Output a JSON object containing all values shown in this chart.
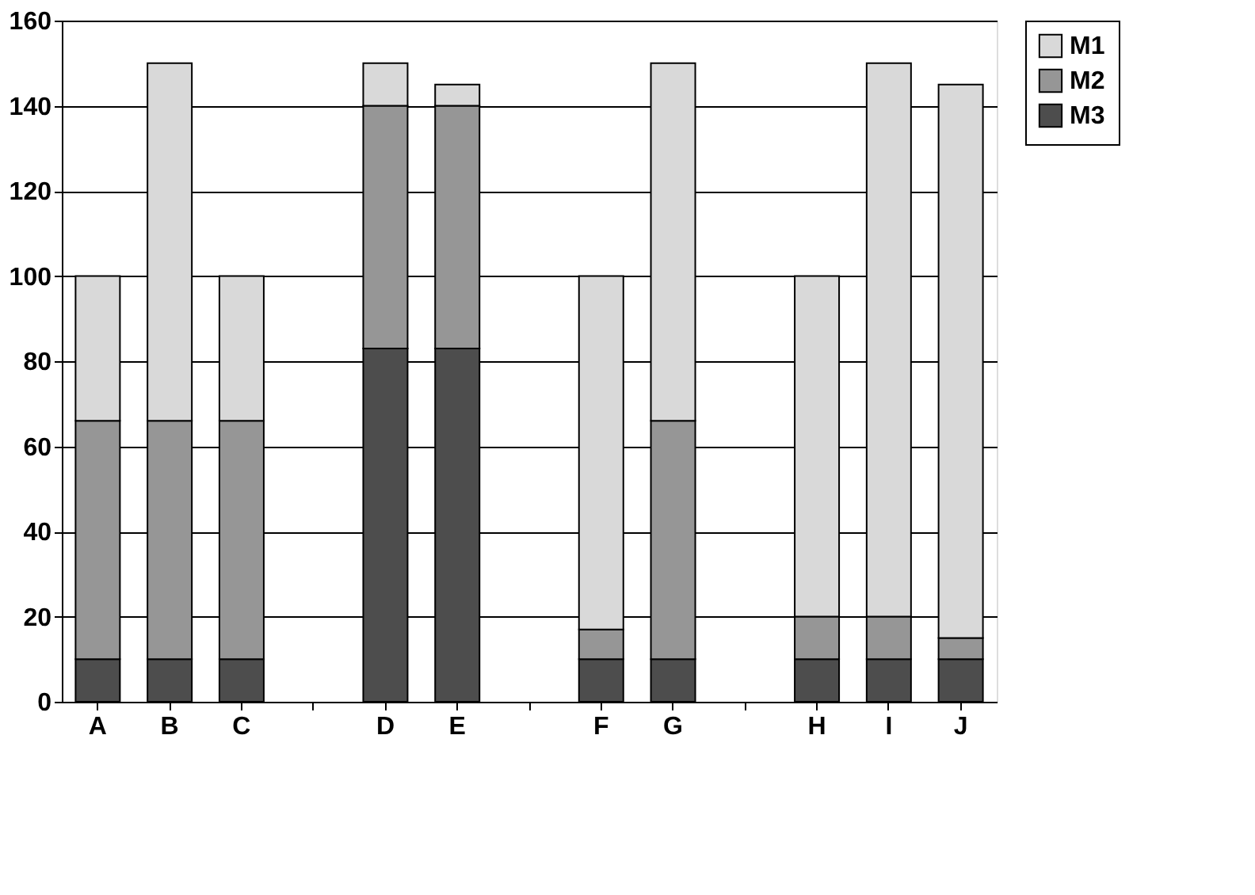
{
  "chart_data": {
    "type": "bar",
    "stacked": true,
    "categories": [
      "A",
      "B",
      "C",
      null,
      "D",
      "E",
      null,
      "F",
      "G",
      null,
      "H",
      "I",
      "J"
    ],
    "series": [
      {
        "name": "M3",
        "color": "#4d4d4d",
        "values": [
          10,
          10,
          10,
          0,
          83,
          83,
          0,
          10,
          10,
          0,
          10,
          10,
          10
        ]
      },
      {
        "name": "M2",
        "color": "#969696",
        "values": [
          56,
          56,
          56,
          0,
          57,
          57,
          0,
          7,
          56,
          0,
          10,
          10,
          5
        ]
      },
      {
        "name": "M1",
        "color": "#d9d9d9",
        "values": [
          34,
          84,
          34,
          0,
          10,
          5,
          0,
          83,
          84,
          0,
          80,
          130,
          130
        ]
      }
    ],
    "ylim": [
      0,
      160
    ],
    "yticks": [
      0,
      20,
      40,
      60,
      80,
      100,
      120,
      140,
      160
    ],
    "grid": "y",
    "legend": "right"
  }
}
